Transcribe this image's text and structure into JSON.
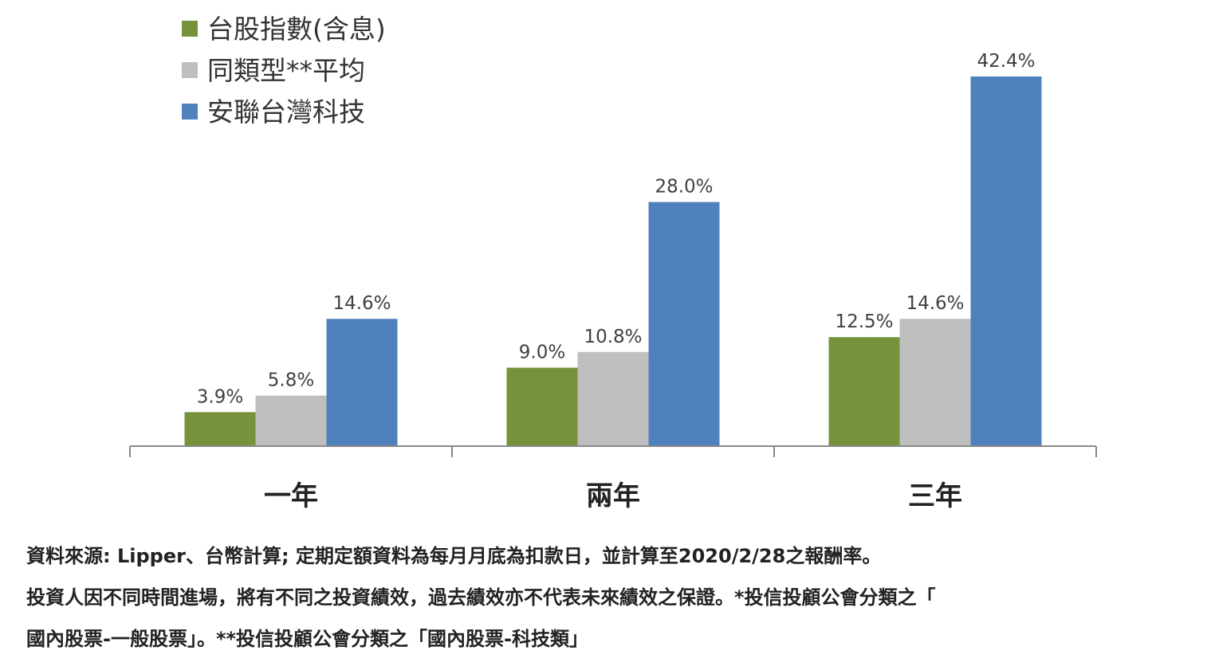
{
  "chart_data": {
    "type": "bar",
    "categories": [
      "一年",
      "兩年",
      "三年"
    ],
    "series": [
      {
        "name": "台股指數(含息)",
        "color": "#76933c",
        "values": [
          3.9,
          9.0,
          12.5
        ],
        "labels": [
          "3.9%",
          "9.0%",
          "12.5%"
        ]
      },
      {
        "name": "同類型**平均",
        "color": "#bfbfbf",
        "values": [
          5.8,
          10.8,
          14.6
        ],
        "labels": [
          "5.8%",
          "10.8%",
          "14.6%"
        ]
      },
      {
        "name": "安聯台灣科技",
        "color": "#4f81bd",
        "values": [
          14.6,
          28.0,
          42.4
        ],
        "labels": [
          "14.6%",
          "28.0%",
          "42.4%"
        ]
      }
    ],
    "ylim": [
      0,
      42.4
    ],
    "grid": false,
    "legend_position": "top-left",
    "title": "",
    "xlabel": "",
    "ylabel": ""
  },
  "footnote": {
    "line1": "資料來源: Lipper、台幣計算; 定期定額資料為每月月底為扣款日，並計算至2020/2/28之報酬率。",
    "line2": "投資人因不同時間進場，將有不同之投資績效，過去績效亦不代表未來績效之保證。*投信投顧公會分類之「",
    "line3": "國內股票-一般股票」。**投信投顧公會分類之「國內股票-科技類」"
  }
}
